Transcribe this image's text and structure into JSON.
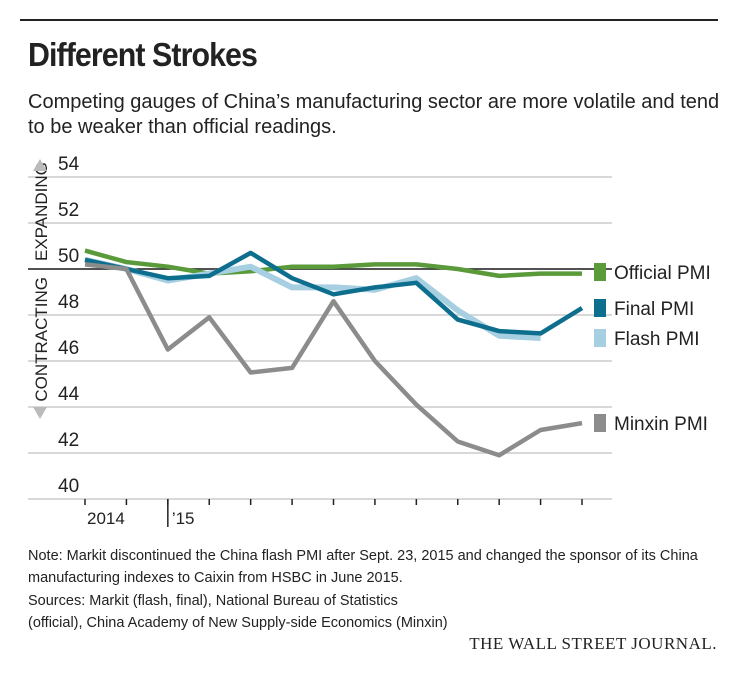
{
  "title": "Different Strokes",
  "subtitle": "Competing gauges of China’s manufacturing sector are more volatile and tend to be weaker than official readings.",
  "note": "Note: Markit discontinued the China flash PMI after Sept. 23, 2015 and changed the sponsor of its China manufacturing indexes to Caixin from HSBC in June 2015.",
  "sources": "Sources: Markit (flash, final), National Bureau of Statistics (official), China Academy of New Supply-side Economics (Minxin)",
  "logo": "THE WALL STREET JOURNAL.",
  "chart_data": {
    "type": "line",
    "title": "Different Strokes",
    "ylim": [
      40,
      54
    ],
    "yticks": [
      40,
      42,
      44,
      46,
      48,
      50,
      52,
      54
    ],
    "ylabel_up": "EXPANDING",
    "ylabel_down": "CONTRACTING",
    "xtick_labels": [
      {
        "index": 1,
        "label": "2014"
      },
      {
        "index": 2,
        "label": "’15"
      }
    ],
    "reference_line": 50,
    "grid": true,
    "legend": "right",
    "n_points": 13,
    "series": [
      {
        "name": "Official PMI",
        "color": "#5a9a3a",
        "values": [
          50.8,
          50.3,
          50.1,
          49.8,
          49.9,
          50.1,
          50.1,
          50.2,
          50.2,
          50.0,
          49.7,
          49.8,
          49.8
        ]
      },
      {
        "name": "Flash PMI",
        "color": "#a6cfe2",
        "values": [
          50.4,
          50.0,
          49.5,
          49.8,
          50.1,
          49.2,
          49.2,
          49.1,
          49.6,
          48.2,
          47.1,
          47.0
        ]
      },
      {
        "name": "Final PMI",
        "color": "#0e6e8e",
        "values": [
          50.4,
          50.0,
          49.6,
          49.7,
          50.7,
          49.6,
          48.9,
          49.2,
          49.4,
          47.8,
          47.3,
          47.2,
          48.3
        ]
      },
      {
        "name": "Minxin PMI",
        "color": "#8c8c8c",
        "values": [
          50.2,
          50.0,
          46.5,
          47.9,
          45.5,
          45.7,
          48.6,
          46.0,
          44.1,
          42.5,
          41.9,
          43.0,
          43.3
        ]
      }
    ],
    "legend_order": [
      "Official PMI",
      "Final PMI",
      "Flash PMI",
      "Minxin PMI"
    ]
  }
}
